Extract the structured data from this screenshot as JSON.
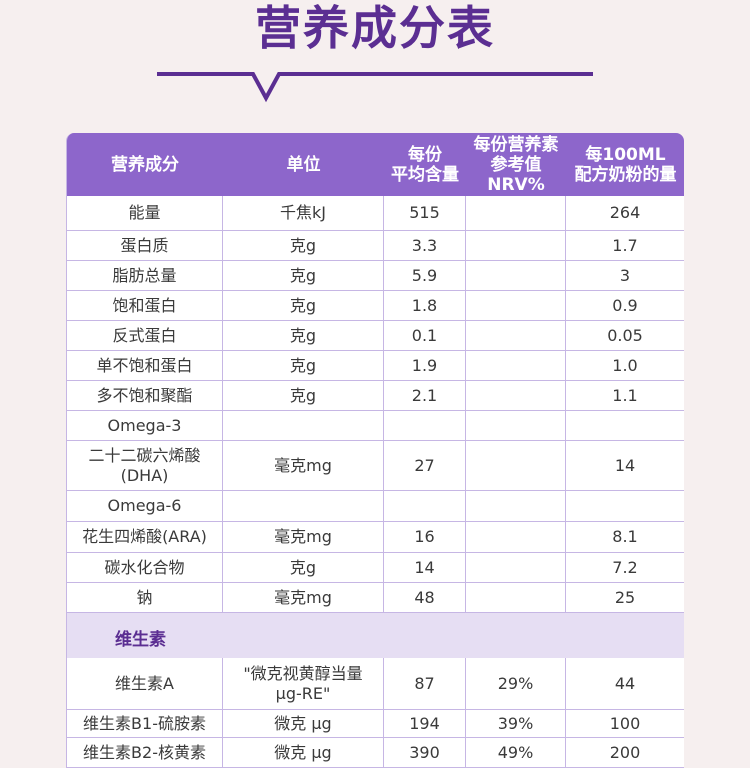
{
  "header": {
    "title": "营养成分表"
  },
  "table": {
    "columns": [
      "营养成分",
      "单位",
      [
        "每份",
        "平均含量"
      ],
      [
        "每份营养素",
        "参考值NRV%"
      ],
      [
        "每100ML",
        "配方奶粉的量"
      ]
    ],
    "rows": [
      [
        "能量",
        "千焦kJ",
        "515",
        null,
        "264"
      ],
      [
        "蛋白质",
        "克g",
        "3.3",
        null,
        "1.7"
      ],
      [
        "脂肪总量",
        "克g",
        "5.9",
        null,
        "3"
      ],
      [
        "饱和蛋白",
        "克g",
        "1.8",
        null,
        "0.9"
      ],
      [
        "反式蛋白",
        "克g",
        "0.1",
        null,
        "0.05"
      ],
      [
        "单不饱和蛋白",
        "克g",
        "1.9",
        null,
        "1.0"
      ],
      [
        "多不饱和聚酯",
        "克g",
        "2.1",
        null,
        "1.1"
      ],
      [
        "Omega-3",
        null,
        null,
        null,
        null
      ],
      [
        [
          "二十二碳六烯酸",
          "(DHA)"
        ],
        "毫克mg",
        "27",
        null,
        "14"
      ],
      [
        "Omega-6",
        null,
        null,
        null,
        null
      ],
      [
        "花生四烯酸(ARA)",
        "毫克mg",
        "16",
        null,
        "8.1"
      ],
      [
        "碳水化合物",
        "克g",
        "14",
        null,
        "7.2"
      ],
      [
        "钠",
        "毫克mg",
        "48",
        null,
        "25"
      ]
    ],
    "section": "维生素",
    "section_rows": [
      [
        "维生素A",
        [
          "\"微克视黄醇当量",
          "μg-RE\""
        ],
        "87",
        "29%",
        "44"
      ],
      [
        "维生素B1-硫胺素",
        "微克 μg",
        "194",
        "39%",
        "100"
      ],
      [
        "维生素B2-核黄素",
        "微克 μg",
        "390",
        "49%",
        "200"
      ]
    ]
  }
}
